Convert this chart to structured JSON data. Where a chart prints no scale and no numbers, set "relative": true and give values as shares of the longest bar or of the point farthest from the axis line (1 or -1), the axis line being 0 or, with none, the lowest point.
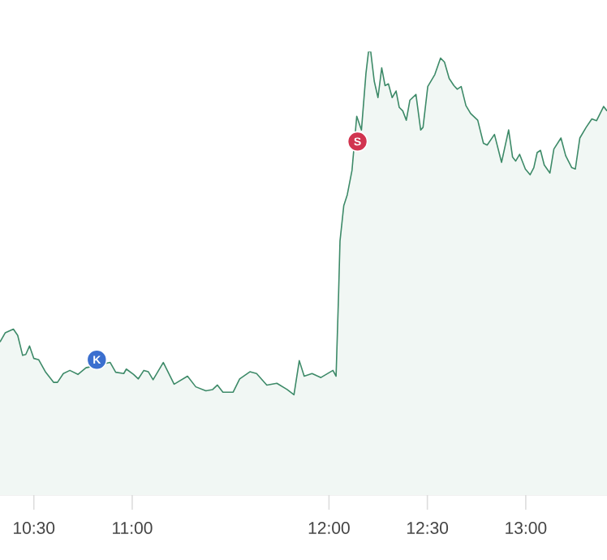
{
  "chart_data": {
    "type": "area",
    "relative": true,
    "x": [
      10.328,
      10.355,
      10.396,
      10.418,
      10.443,
      10.459,
      10.478,
      10.5,
      10.525,
      10.56,
      10.601,
      10.62,
      10.65,
      10.683,
      10.724,
      10.765,
      10.888,
      10.916,
      10.957,
      10.97,
      11.007,
      11.031,
      11.059,
      11.082,
      11.106,
      11.158,
      11.213,
      11.281,
      11.323,
      11.374,
      11.409,
      11.433,
      11.461,
      11.513,
      11.546,
      11.598,
      11.632,
      11.684,
      11.735,
      11.787,
      11.822,
      11.849,
      11.874,
      11.914,
      11.959,
      12.02,
      12.036,
      12.049,
      12.056,
      12.075,
      12.093,
      12.117,
      12.141,
      12.165,
      12.188,
      12.201,
      12.212,
      12.23,
      12.249,
      12.268,
      12.285,
      12.302,
      12.321,
      12.341,
      12.357,
      12.375,
      12.393,
      12.411,
      12.442,
      12.466,
      12.478,
      12.502,
      12.538,
      12.567,
      12.587,
      12.611,
      12.635,
      12.652,
      12.672,
      12.696,
      12.72,
      12.756,
      12.785,
      12.804,
      12.841,
      12.877,
      12.913,
      12.933,
      12.949,
      12.969,
      12.998,
      13.022,
      13.041,
      13.058,
      13.075,
      13.094,
      13.123,
      13.143,
      13.179,
      13.203,
      13.234,
      13.252,
      13.275,
      13.307,
      13.336,
      13.36,
      13.396,
      13.413
    ],
    "values": [
      0.345,
      0.366,
      0.374,
      0.36,
      0.315,
      0.317,
      0.336,
      0.308,
      0.305,
      0.277,
      0.254,
      0.254,
      0.274,
      0.281,
      0.272,
      0.287,
      0.299,
      0.277,
      0.274,
      0.284,
      0.272,
      0.262,
      0.281,
      0.278,
      0.26,
      0.299,
      0.25,
      0.268,
      0.244,
      0.235,
      0.238,
      0.248,
      0.232,
      0.232,
      0.262,
      0.278,
      0.274,
      0.248,
      0.252,
      0.238,
      0.226,
      0.303,
      0.268,
      0.274,
      0.265,
      0.281,
      0.268,
      0.457,
      0.573,
      0.652,
      0.677,
      0.732,
      0.854,
      0.823,
      0.951,
      1,
      1,
      0.933,
      0.896,
      0.963,
      0.923,
      0.927,
      0.896,
      0.911,
      0.874,
      0.866,
      0.845,
      0.89,
      0.903,
      0.823,
      0.829,
      0.921,
      0.948,
      0.985,
      0.976,
      0.939,
      0.923,
      0.915,
      0.921,
      0.878,
      0.86,
      0.845,
      0.793,
      0.789,
      0.813,
      0.75,
      0.823,
      0.762,
      0.753,
      0.768,
      0.735,
      0.722,
      0.738,
      0.772,
      0.777,
      0.744,
      0.726,
      0.78,
      0.805,
      0.765,
      0.738,
      0.735,
      0.805,
      0.829,
      0.848,
      0.844,
      0.876,
      0.866
    ],
    "color": "#3d8a68",
    "xlim": [
      10.328,
      13.413
    ],
    "xticks": [
      {
        "value": 10.5,
        "label": "10:30"
      },
      {
        "value": 11,
        "label": "11:00"
      },
      {
        "value": 12,
        "label": "12:00"
      },
      {
        "value": 12.5,
        "label": "12:30"
      },
      {
        "value": 13,
        "label": "13:00"
      }
    ],
    "annotations": [
      {
        "text": "K",
        "x": 10.82,
        "y": 0.305
      },
      {
        "text": "S",
        "x": 12.145,
        "y": 0.797
      }
    ]
  }
}
